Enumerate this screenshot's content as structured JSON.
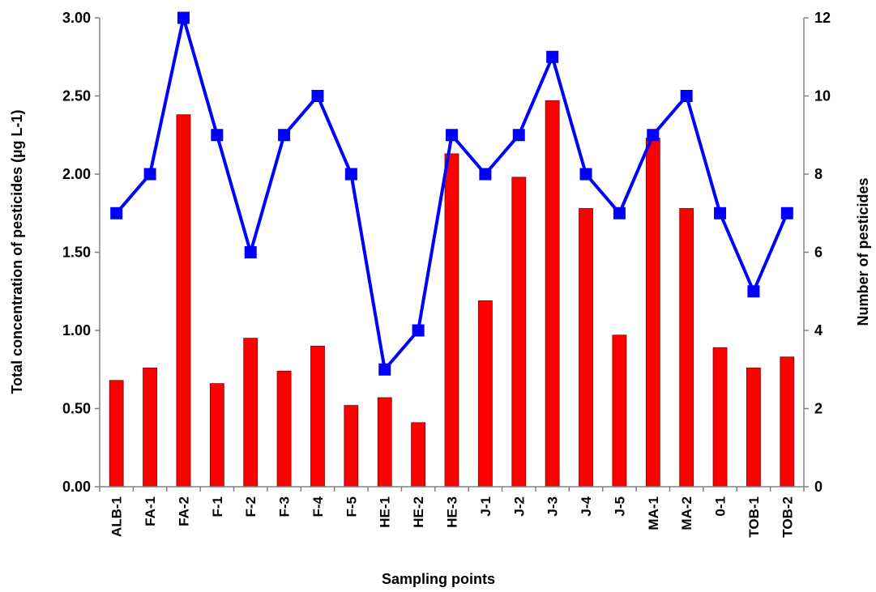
{
  "chart_data": {
    "type": "bar+line",
    "title": "",
    "xlabel": "Sampling points",
    "ylabel_left": "Total concentration of pesticides  (µg L-1)",
    "ylabel_right": "Number of pesticides",
    "ylim_left": [
      0,
      3
    ],
    "ylim_right": [
      0,
      12
    ],
    "yticks_left": [
      "0.00",
      "0.50",
      "1.00",
      "1.50",
      "2.00",
      "2.50",
      "3.00"
    ],
    "yticks_right": [
      "0",
      "2",
      "4",
      "6",
      "8",
      "10",
      "12"
    ],
    "categories": [
      "ALB-1",
      "FA-1",
      "FA-2",
      "F-1",
      "F-2",
      "F-3",
      "F-4",
      "F-5",
      "HE-1",
      "HE-2",
      "HE-3",
      "J-1",
      "J-2",
      "J-3",
      "J-4",
      "J-5",
      "MA-1",
      "MA-2",
      "0-1",
      "TOB-1",
      "TOB-2"
    ],
    "series": [
      {
        "type": "bar",
        "axis": "left",
        "color": "#ff0000",
        "values": [
          0.68,
          0.76,
          2.38,
          0.66,
          0.95,
          0.74,
          0.9,
          0.52,
          0.57,
          0.41,
          2.13,
          1.19,
          1.98,
          2.47,
          1.78,
          0.97,
          2.23,
          1.78,
          0.89,
          0.76,
          0.83
        ]
      },
      {
        "type": "line",
        "axis": "right",
        "color": "#0000ff",
        "marker": "square",
        "values": [
          7,
          8,
          12,
          9,
          6,
          9,
          10,
          8,
          3,
          4,
          9,
          8,
          9,
          11,
          8,
          7,
          9,
          10,
          7,
          5,
          7
        ]
      }
    ],
    "grid": false,
    "legend": "none"
  }
}
